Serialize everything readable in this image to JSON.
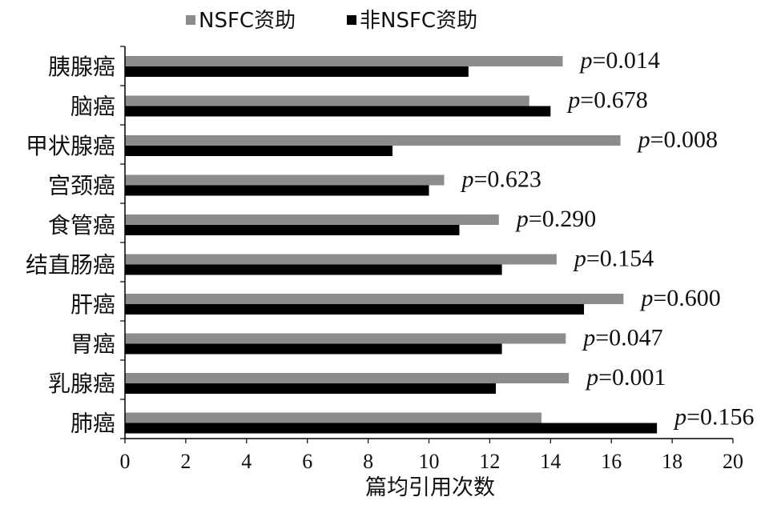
{
  "chart_data": {
    "type": "bar",
    "orientation": "horizontal",
    "categories": [
      "胰腺癌",
      "脑癌",
      "甲状腺癌",
      "宫颈癌",
      "食管癌",
      "结直肠癌",
      "肝癌",
      "胃癌",
      "乳腺癌",
      "肺癌"
    ],
    "series": [
      {
        "name": "NSFC资助",
        "color": "#8c8c8c",
        "values": [
          14.4,
          13.3,
          16.3,
          10.5,
          12.3,
          14.2,
          16.4,
          14.5,
          14.6,
          13.7
        ]
      },
      {
        "name": "非NSFC资助",
        "color": "#000000",
        "values": [
          11.3,
          14.0,
          8.8,
          10.0,
          11.0,
          12.4,
          15.1,
          12.4,
          12.2,
          17.5
        ]
      }
    ],
    "annotations": [
      "p=0.014",
      "p=0.678",
      "p=0.008",
      "p=0.623",
      "p=0.290",
      "p=0.154",
      "p=0.600",
      "p=0.047",
      "p=0.001",
      "p=0.156"
    ],
    "xlabel": "篇均引用次数",
    "ylabel": "",
    "xlim": [
      0,
      20
    ],
    "xticks": [
      0,
      2,
      4,
      6,
      8,
      10,
      12,
      14,
      16,
      18,
      20
    ],
    "grid": false,
    "legend_position": "top"
  }
}
